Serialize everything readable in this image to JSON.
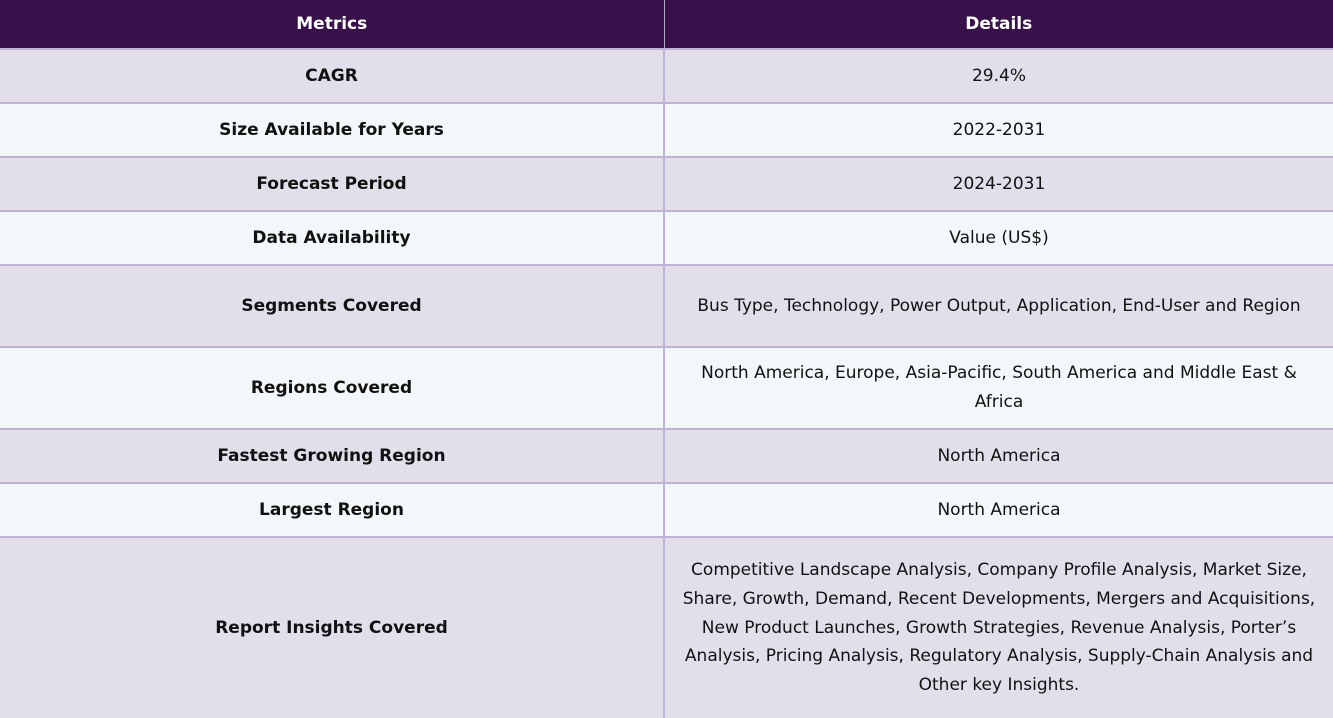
{
  "table": {
    "headers": {
      "metrics": "Metrics",
      "details": "Details"
    },
    "rows": [
      {
        "metric": "CAGR",
        "detail": "29.4%"
      },
      {
        "metric": "Size Available for Years",
        "detail": "2022-2031"
      },
      {
        "metric": "Forecast Period",
        "detail": "2024-2031"
      },
      {
        "metric": "Data Availability",
        "detail": "Value (US$)"
      },
      {
        "metric": "Segments Covered",
        "detail": "Bus Type, Technology, Power Output, Application, End-User and Region"
      },
      {
        "metric": "Regions Covered",
        "detail": "North America, Europe, Asia-Pacific, South America and Middle East & Africa"
      },
      {
        "metric": "Fastest Growing Region",
        "detail": "North America"
      },
      {
        "metric": "Largest Region",
        "detail": "North America"
      },
      {
        "metric": "Report Insights Covered",
        "detail": "Competitive Landscape Analysis, Company Profile Analysis, Market Size, Share, Growth, Demand, Recent Developments, Mergers and Acquisitions, New Product Launches, Growth Strategies, Revenue Analysis, Porter’s Analysis, Pricing Analysis, Regulatory Analysis, Supply-Chain Analysis and Other key Insights."
      }
    ]
  },
  "colors": {
    "header_bg": "#38114b",
    "row_odd_bg": "#e2dfeb",
    "row_even_bg": "#f2f8fa",
    "border": "#bdb3d3"
  }
}
